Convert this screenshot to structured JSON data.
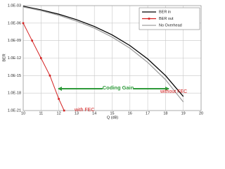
{
  "chart_data": {
    "type": "line",
    "x_label": "Q (dB)",
    "y_label": "BER",
    "log_y": true,
    "grid": true,
    "legend": "upper right",
    "xlim": [
      10,
      20
    ],
    "xticks": [
      10,
      11,
      12,
      13,
      14,
      15,
      16,
      17,
      18,
      19,
      20
    ],
    "ylim": [
      1e-21,
      0.001
    ],
    "yticks": [
      {
        "value": 1e-21,
        "label": "1.0E-21"
      },
      {
        "value": 1e-18,
        "label": "1.0E-18"
      },
      {
        "value": 1e-15,
        "label": "1.0E-15"
      },
      {
        "value": 1e-12,
        "label": "1.0E-12"
      },
      {
        "value": 1e-09,
        "label": "1.0E-09"
      },
      {
        "value": 1e-06,
        "label": "1.0E-06"
      },
      {
        "value": 0.001,
        "label": "1.0E-03"
      }
    ],
    "series": [
      {
        "name": "BER in",
        "color": "#000000",
        "x": [
          10,
          11,
          12,
          13,
          14,
          15,
          16,
          17,
          18,
          19
        ],
        "values": [
          0.00078,
          0.00019,
          3.4e-05,
          3.9e-06,
          2.7e-07,
          9.5e-09,
          1.4e-10,
          7e-13,
          1e-15,
          2.6e-19
        ]
      },
      {
        "name": "BER out",
        "color": "#d42020",
        "markers": true,
        "x": [
          10,
          10.5,
          11,
          11.5,
          12,
          12.3
        ],
        "values": [
          1e-06,
          1e-09,
          1e-12,
          1e-15,
          1e-19,
          1e-21
        ]
      },
      {
        "name": "No Overhead",
        "color": "#a0a0a0",
        "x": [
          10,
          11,
          12,
          13,
          14,
          15,
          16,
          17,
          18,
          19
        ],
        "values": [
          0.0006,
          0.00014,
          2.2e-05,
          2.2e-06,
          1.4e-07,
          4e-09,
          5e-11,
          1.8e-13,
          2e-16,
          3e-20
        ]
      }
    ],
    "annotations": {
      "coding_gain": "Coding Gain",
      "with_fec": "with FEC",
      "without_fec": "without FEC"
    }
  }
}
